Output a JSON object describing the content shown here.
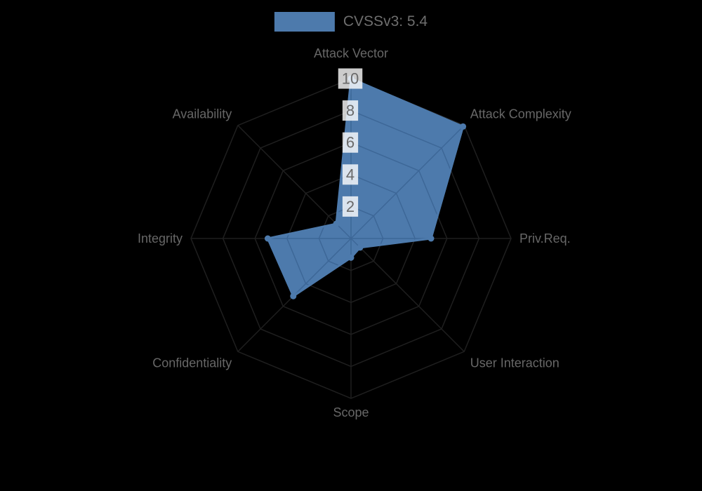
{
  "chart_data": {
    "type": "radar",
    "legend": {
      "label": "CVSSv3: 5.4",
      "position": "top"
    },
    "categories": [
      "Attack Vector",
      "Attack Complexity",
      "Priv.Req.",
      "User Interaction",
      "Scope",
      "Confidentiality",
      "Integrity",
      "Availability"
    ],
    "series": [
      {
        "name": "CVSSv3: 5.4",
        "values": [
          10,
          9.9,
          5.0,
          0.8,
          1.2,
          5.1,
          5.2,
          1.3
        ]
      }
    ],
    "rlim": [
      0,
      10
    ],
    "ticks": [
      2,
      4,
      6,
      8,
      10
    ],
    "grid": "on",
    "colors": {
      "fill": "#4d7aac",
      "stroke": "#4d7aac",
      "grid_inner": "#3d6797",
      "grid_outer": "#1f1f1f",
      "axis_label": "#676767",
      "tick_text": "#6a6a6a",
      "tick_backdrop": "rgba(255,255,255,0.8)",
      "background": "#000000"
    }
  }
}
